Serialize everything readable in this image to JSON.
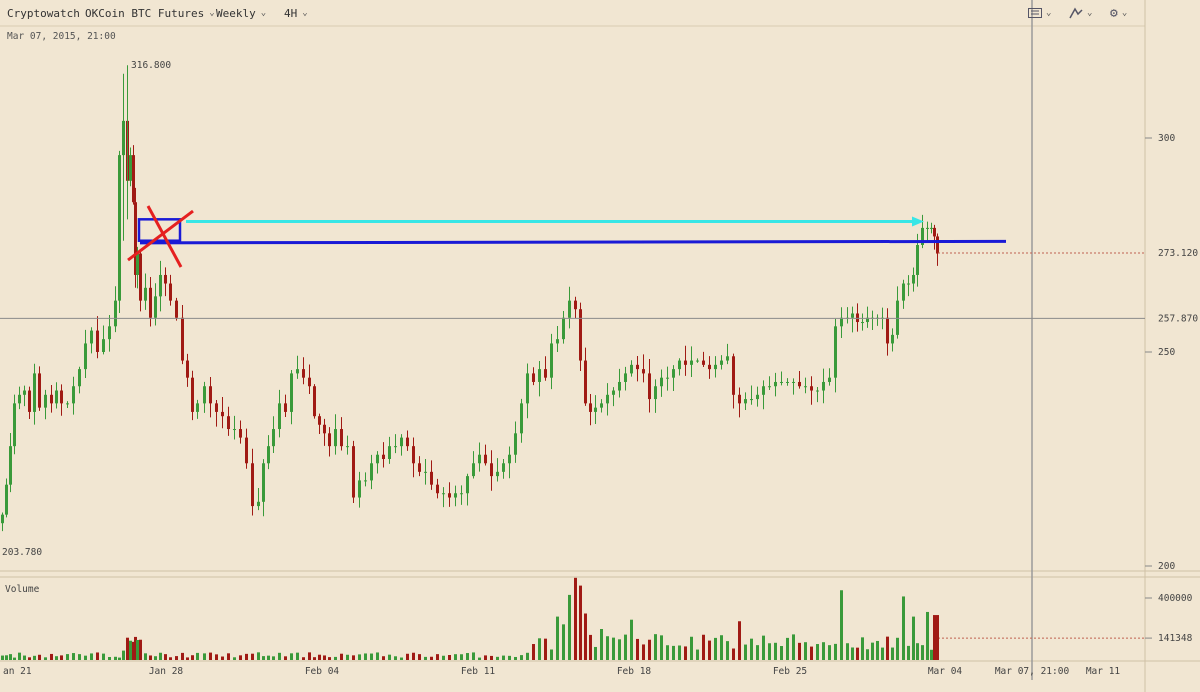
{
  "toolbar": {
    "brand": "Cryptowatch",
    "market": "OKCoin BTC Futures",
    "range": "Weekly",
    "interval": "4H",
    "icons": [
      "keyboard-icon",
      "drawing-tool-icon",
      "gear-icon"
    ]
  },
  "header_date": "Mar 07, 2015, 21:00",
  "chart_data": {
    "type": "candlestick",
    "price_axis": {
      "ticks": [
        300,
        250,
        200
      ],
      "min": 197,
      "max": 322
    },
    "markers": {
      "high_label": "316.800",
      "low_label": "203.780",
      "last_price": "273.120",
      "crosshair_price": "257.870",
      "last_price_value": 273.12,
      "crosshair_price_value": 257.87
    },
    "volume": {
      "title": "Volume",
      "ticks": [
        "400000"
      ],
      "current_label": "141348",
      "current_value": 141348,
      "max": 480000
    },
    "x_axis": {
      "labels": [
        "an 21",
        "Jan 28",
        "Feb 04",
        "Feb 11",
        "Feb 18",
        "Feb 25",
        "Mar 04",
        "Mar 07, 21:00",
        "Mar 11"
      ]
    },
    "annotations": {
      "cyan_arrow_level": 280.5,
      "blue_line_level": 275.5,
      "box_range": [
        276,
        281
      ],
      "cross_center_level": 278.5
    },
    "colors": {
      "up": "#3a9a3a",
      "down": "#a01a14",
      "cyan": "#38e6e6",
      "blue": "#1a1ad6",
      "cross": "#e52020",
      "grid": "#e0d4bc"
    }
  }
}
